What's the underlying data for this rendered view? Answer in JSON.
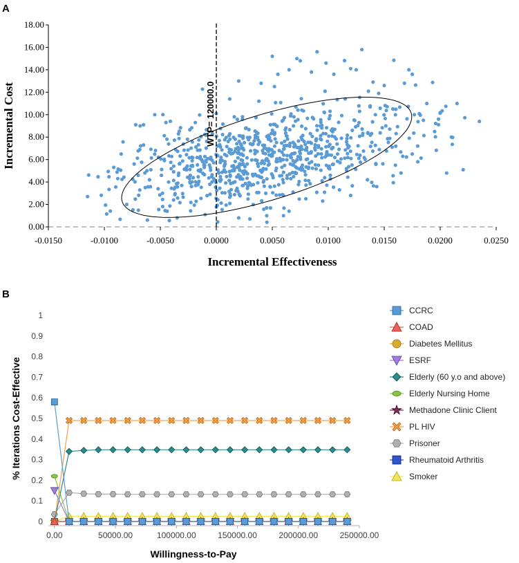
{
  "panels": {
    "a_label": "A",
    "b_label": "B"
  },
  "chart_data": [
    {
      "type": "scatter",
      "title": "",
      "xlabel": "Incremental Effectiveness",
      "ylabel": "Incremental Cost",
      "xlim": [
        -0.015,
        0.025
      ],
      "ylim": [
        0,
        18
      ],
      "x_ticks": [
        -0.015,
        -0.01,
        -0.005,
        0,
        0.005,
        0.01,
        0.015,
        0.02,
        0.025
      ],
      "x_tick_labels": [
        "-0.0150",
        "-0.0100",
        "-0.0050",
        "0.0000",
        "0.0050",
        "0.0100",
        "0.0150",
        "0.0200",
        "0.0250"
      ],
      "y_ticks": [
        0,
        2,
        4,
        6,
        8,
        10,
        12,
        14,
        16,
        18
      ],
      "y_tick_labels": [
        "0.00",
        "2.00",
        "4.00",
        "6.00",
        "8.00",
        "10.00",
        "12.00",
        "14.00",
        "16.00",
        "18.00"
      ],
      "wtp_label": "WTP= 120000.0",
      "wtp_x": 0,
      "point_color": "#5B9BD5",
      "ellipse": {
        "center": [
          0.0045,
          6.2
        ],
        "semi_axis_x": 0.0135,
        "semi_axis_y": 3.8,
        "tilt_deg": 17
      },
      "points": [
        [
          -0.0115,
          2.7
        ],
        [
          -0.0088,
          4.3
        ],
        [
          -0.0085,
          6.5
        ],
        [
          -0.008,
          2.0
        ],
        [
          -0.0072,
          9.1
        ],
        [
          -0.0068,
          9.0
        ],
        [
          -0.0065,
          9.1
        ],
        [
          -0.0065,
          7.3
        ],
        [
          -0.0062,
          5.0
        ],
        [
          -0.0055,
          10.0
        ],
        [
          -0.0045,
          9.3
        ],
        [
          -0.0048,
          3.0
        ],
        [
          -0.0035,
          0.8
        ],
        [
          -0.001,
          1.1
        ],
        [
          0.0,
          10.1
        ],
        [
          0.0012,
          11.4
        ],
        [
          0.0052,
          12.5
        ],
        [
          0.002,
          13.0
        ],
        [
          0.004,
          12.8
        ],
        [
          0.0038,
          11.2
        ],
        [
          0.005,
          15.2
        ],
        [
          0.0055,
          13.6
        ],
        [
          0.0065,
          14.0
        ],
        [
          0.0075,
          14.8
        ],
        [
          0.0072,
          15.0
        ],
        [
          0.0085,
          13.8
        ],
        [
          0.009,
          15.6
        ],
        [
          0.0098,
          14.6
        ],
        [
          0.0105,
          13.6
        ],
        [
          0.012,
          14.1
        ],
        [
          0.0125,
          14.0
        ],
        [
          0.013,
          15.8
        ],
        [
          0.014,
          12.9
        ],
        [
          0.0145,
          11.9
        ],
        [
          0.015,
          12.6
        ],
        [
          0.0158,
          10.5
        ],
        [
          0.0168,
          12.8
        ],
        [
          0.0172,
          14.0
        ],
        [
          0.0175,
          13.6
        ],
        [
          0.0188,
          11.0
        ],
        [
          0.0185,
          9.5
        ],
        [
          0.0195,
          8.5
        ],
        [
          0.021,
          8.0
        ],
        [
          0.0215,
          11.0
        ],
        [
          0.0235,
          9.4
        ],
        [
          0.018,
          5.8
        ],
        [
          0.0175,
          6.5
        ],
        [
          0.0165,
          4.8
        ],
        [
          0.016,
          5.5
        ],
        [
          0.0135,
          4.2
        ],
        [
          0.012,
          2.8
        ],
        [
          0.011,
          3.3
        ],
        [
          0.0095,
          2.3
        ],
        [
          0.008,
          2.5
        ],
        [
          0.006,
          1.0
        ],
        [
          0.0065,
          1.4
        ],
        [
          0.0045,
          1.0
        ],
        [
          0.003,
          0.7
        ],
        [
          0.002,
          0.8
        ],
        [
          0.0,
          -0.2
        ]
      ],
      "generated_cloud": {
        "count": 820,
        "seed": 7
      }
    },
    {
      "type": "line",
      "title": "",
      "xlabel": "Willingness-to-Pay",
      "ylabel": "% Iterations Cost-Effective",
      "xlim": [
        -5000,
        250000
      ],
      "ylim": [
        0,
        1
      ],
      "x_ticks": [
        0,
        50000,
        100000,
        150000,
        200000,
        250000
      ],
      "x_tick_labels": [
        "0.00",
        "50000.00",
        "100000.00",
        "150000.00",
        "200000.00",
        "250000.00"
      ],
      "y_ticks": [
        0,
        0.1,
        0.2,
        0.3,
        0.4,
        0.5,
        0.6,
        0.7,
        0.8,
        0.9,
        1
      ],
      "y_tick_labels": [
        "0",
        "0.1",
        "0.2",
        "0.3",
        "0.4",
        "0.5",
        "0.6",
        "0.7",
        "0.8",
        "0.9",
        "1"
      ],
      "x": [
        0,
        12000,
        24000,
        36000,
        48000,
        60000,
        72000,
        84000,
        96000,
        108000,
        120000,
        132000,
        144000,
        156000,
        168000,
        180000,
        192000,
        204000,
        216000,
        228000,
        240000
      ],
      "series": [
        {
          "name": "CCRC",
          "marker": "square",
          "color": "#5B9BD5",
          "values": [
            0.58,
            0.0,
            0.0,
            0.0,
            0.0,
            0.0,
            0.0,
            0.0,
            0.0,
            0.0,
            0.0,
            0.0,
            0.0,
            0.0,
            0.0,
            0.0,
            0.0,
            0.0,
            0.0,
            0.0,
            0.0
          ]
        },
        {
          "name": "COAD",
          "marker": "triangle",
          "color": "#E8625B",
          "values": [
            0.0,
            0.0,
            0.0,
            0.0,
            0.0,
            0.0,
            0.0,
            0.0,
            0.0,
            0.0,
            0.0,
            0.0,
            0.0,
            0.0,
            0.0,
            0.0,
            0.0,
            0.0,
            0.0,
            0.0,
            0.0
          ]
        },
        {
          "name": "Diabetes Mellitus",
          "marker": "circle",
          "color": "#D9A933",
          "values": [
            0.0,
            0.0,
            0.0,
            0.0,
            0.0,
            0.0,
            0.0,
            0.0,
            0.0,
            0.0,
            0.0,
            0.0,
            0.0,
            0.0,
            0.0,
            0.0,
            0.0,
            0.0,
            0.0,
            0.0,
            0.0
          ]
        },
        {
          "name": "ESRF",
          "marker": "triangle-down",
          "color": "#9D7EE0",
          "values": [
            0.15,
            0.0,
            0.0,
            0.0,
            0.0,
            0.0,
            0.0,
            0.0,
            0.0,
            0.0,
            0.0,
            0.0,
            0.0,
            0.0,
            0.0,
            0.0,
            0.0,
            0.0,
            0.0,
            0.0,
            0.0
          ]
        },
        {
          "name": "Elderly (60 y.o and above)",
          "marker": "diamond",
          "color": "#2E8B8B",
          "values": [
            0.0,
            0.34,
            0.345,
            0.348,
            0.348,
            0.348,
            0.348,
            0.348,
            0.348,
            0.348,
            0.348,
            0.348,
            0.348,
            0.348,
            0.348,
            0.348,
            0.348,
            0.348,
            0.348,
            0.348,
            0.348
          ]
        },
        {
          "name": "Elderly Nursing Home",
          "marker": "ellipse",
          "color": "#8BC34A",
          "values": [
            0.22,
            0.0,
            0.0,
            0.0,
            0.0,
            0.0,
            0.0,
            0.0,
            0.0,
            0.0,
            0.0,
            0.0,
            0.0,
            0.0,
            0.0,
            0.0,
            0.0,
            0.0,
            0.0,
            0.0,
            0.0
          ]
        },
        {
          "name": "Methadone Clinic Client",
          "marker": "star",
          "color": "#7B2D5E",
          "values": [
            0.0,
            0.0,
            0.0,
            0.0,
            0.0,
            0.0,
            0.0,
            0.0,
            0.0,
            0.0,
            0.0,
            0.0,
            0.0,
            0.0,
            0.0,
            0.0,
            0.0,
            0.0,
            0.0,
            0.0,
            0.0
          ]
        },
        {
          "name": "PL HIV",
          "marker": "x-square",
          "color": "#F5A04A",
          "values": [
            0.0,
            0.49,
            0.49,
            0.49,
            0.49,
            0.49,
            0.49,
            0.49,
            0.49,
            0.49,
            0.49,
            0.49,
            0.49,
            0.49,
            0.49,
            0.49,
            0.49,
            0.49,
            0.49,
            0.49,
            0.49
          ]
        },
        {
          "name": "Prisoner",
          "marker": "hexagon",
          "color": "#B0B0B0",
          "values": [
            0.035,
            0.14,
            0.135,
            0.133,
            0.133,
            0.132,
            0.132,
            0.132,
            0.132,
            0.132,
            0.132,
            0.132,
            0.132,
            0.132,
            0.132,
            0.132,
            0.132,
            0.132,
            0.132,
            0.132,
            0.132
          ]
        },
        {
          "name": "Rheumatoid Arthritis",
          "marker": "square",
          "color": "#2F55C8",
          "values": [
            0.0,
            0.0,
            0.0,
            0.0,
            0.0,
            0.0,
            0.0,
            0.0,
            0.0,
            0.0,
            0.0,
            0.0,
            0.0,
            0.0,
            0.0,
            0.0,
            0.0,
            0.0,
            0.0,
            0.0,
            0.0
          ]
        },
        {
          "name": "Smoker",
          "marker": "triangle",
          "color": "#F2E55C",
          "values": [
            0.0,
            0.025,
            0.025,
            0.025,
            0.025,
            0.025,
            0.025,
            0.025,
            0.025,
            0.025,
            0.025,
            0.025,
            0.025,
            0.025,
            0.025,
            0.025,
            0.025,
            0.025,
            0.025,
            0.025,
            0.025
          ]
        }
      ],
      "legend_position": "right"
    }
  ]
}
